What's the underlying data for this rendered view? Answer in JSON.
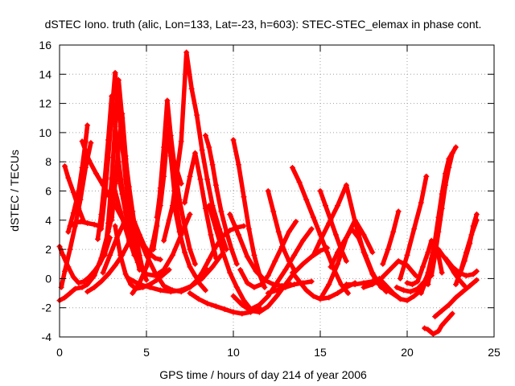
{
  "chart_data": {
    "type": "scatter",
    "title": "dSTEC Iono. truth (alic, Lon=133, Lat=-23, h=603): STEC-STEC_elemax in phase cont.",
    "xlabel": "GPS time / hours of day 214 of year 2006",
    "ylabel": "dSTEC  / TECUs",
    "xlim": [
      0,
      25
    ],
    "ylim": [
      -4,
      16
    ],
    "x_ticks": [
      0,
      5,
      10,
      15,
      20,
      25
    ],
    "y_ticks": [
      -4,
      -2,
      0,
      2,
      4,
      6,
      8,
      10,
      12,
      14,
      16
    ],
    "x_tick_labels": [
      "0",
      "5",
      "10",
      "15",
      "20",
      "25"
    ],
    "y_tick_labels": [
      "-4",
      "-2",
      "0",
      "2",
      "4",
      "6",
      "8",
      "10",
      "12",
      "14",
      "16"
    ],
    "grid": true,
    "legend": "none",
    "marker": "+",
    "color": "#ff0000",
    "series": [
      {
        "x": [
          0.0,
          0.2,
          0.5,
          0.8,
          1.1,
          1.4,
          1.7,
          2.0,
          2.3,
          2.6,
          2.9
        ],
        "values": [
          2.2,
          1.6,
          0.8,
          0.1,
          -0.3,
          -0.2,
          0.1,
          0.5,
          1.0,
          1.7,
          2.8
        ]
      },
      {
        "x": [
          0.0,
          0.3,
          0.6,
          0.9,
          1.3,
          1.6,
          2.0,
          2.4,
          2.8,
          3.0
        ],
        "values": [
          -1.5,
          -1.3,
          -1.0,
          -0.7,
          -0.6,
          -0.4,
          0.2,
          1.4,
          3.2,
          4.2
        ]
      },
      {
        "x": [
          0.1,
          0.3,
          0.6,
          0.9,
          1.2,
          1.5,
          1.8
        ],
        "values": [
          -0.6,
          0.5,
          2.0,
          3.6,
          5.4,
          7.6,
          9.3
        ]
      },
      {
        "x": [
          0.3,
          0.5,
          0.8,
          1.1,
          1.4
        ],
        "values": [
          7.7,
          6.9,
          5.9,
          4.8,
          3.9
        ]
      },
      {
        "x": [
          0.5,
          0.8,
          1.1,
          1.3,
          1.5,
          1.6
        ],
        "values": [
          3.2,
          4.5,
          6.0,
          7.6,
          9.4,
          10.5
        ]
      },
      {
        "x": [
          0.6,
          0.9,
          1.2,
          1.6,
          2.0,
          2.3
        ],
        "values": [
          3.6,
          3.8,
          3.9,
          3.8,
          3.7,
          3.6
        ]
      },
      {
        "x": [
          1.3,
          1.7,
          2.1,
          2.5,
          2.9,
          3.3,
          3.7,
          4.0,
          4.3
        ],
        "values": [
          9.4,
          8.1,
          7.2,
          6.4,
          5.6,
          4.8,
          3.9,
          2.8,
          1.6
        ]
      },
      {
        "x": [
          1.6,
          2.0,
          2.4,
          2.8,
          3.2,
          3.6,
          4.0,
          4.3
        ],
        "values": [
          -0.9,
          -0.6,
          -0.2,
          0.3,
          0.9,
          1.6,
          2.5,
          3.4
        ]
      },
      {
        "x": [
          2.2,
          2.4,
          2.6,
          2.8,
          3.0,
          3.2,
          3.4,
          3.6,
          3.8,
          4.0,
          4.2
        ],
        "values": [
          2.7,
          4.4,
          6.8,
          9.5,
          12.5,
          10.5,
          8.0,
          6.2,
          4.9,
          3.6,
          2.5
        ]
      },
      {
        "x": [
          2.4,
          2.6,
          2.8,
          3.0,
          3.2,
          3.4,
          3.6,
          3.8,
          4.0
        ],
        "values": [
          3.4,
          5.6,
          8.3,
          11.3,
          14.1,
          11.8,
          9.2,
          6.8,
          4.8
        ]
      },
      {
        "x": [
          2.6,
          2.8,
          3.0,
          3.2,
          3.4,
          3.6,
          3.8,
          4.0,
          4.2,
          4.4
        ],
        "values": [
          1.6,
          3.8,
          6.8,
          10.4,
          13.6,
          11.0,
          7.6,
          5.0,
          3.4,
          2.0
        ]
      },
      {
        "x": [
          3.0,
          3.2,
          3.4,
          3.6,
          3.8,
          4.0,
          4.2,
          4.4,
          4.6
        ],
        "values": [
          4.0,
          6.5,
          9.0,
          11.3,
          8.4,
          5.8,
          3.5,
          1.7,
          0.6
        ]
      },
      {
        "x": [
          3.4,
          3.6,
          3.8,
          4.0,
          4.2,
          4.5,
          4.8
        ],
        "values": [
          7.0,
          5.8,
          4.5,
          3.4,
          2.2,
          1.3,
          0.6
        ]
      },
      {
        "x": [
          3.8,
          4.0,
          4.2,
          4.4,
          4.6,
          4.8,
          5.0
        ],
        "values": [
          8.2,
          6.3,
          4.6,
          3.0,
          1.6,
          0.5,
          -0.1
        ]
      },
      {
        "x": [
          2.5,
          2.9,
          3.3,
          3.7,
          4.0,
          4.3,
          4.6,
          4.9,
          5.2,
          5.5,
          5.8
        ],
        "values": [
          0.4,
          1.6,
          2.8,
          3.8,
          4.5,
          3.9,
          3.0,
          2.2,
          1.7,
          1.4,
          1.3
        ]
      },
      {
        "x": [
          3.2,
          3.5,
          3.8,
          4.1,
          4.4,
          4.8,
          5.2,
          5.6,
          6.0,
          6.3
        ],
        "values": [
          3.6,
          1.6,
          0.3,
          -0.4,
          -0.7,
          -0.6,
          -0.4,
          -0.1,
          0.3,
          0.6
        ]
      },
      {
        "x": [
          3.0,
          3.5,
          4.0,
          4.5,
          5.0,
          5.5,
          6.0,
          6.5,
          7.0,
          7.5
        ],
        "values": [
          6.9,
          4.6,
          2.6,
          1.1,
          0.3,
          0.2,
          0.6,
          1.6,
          3.0,
          4.4
        ]
      },
      {
        "x": [
          4.0,
          4.5,
          5.0,
          5.5,
          6.0,
          6.5,
          7.0,
          7.5,
          8.0,
          8.5
        ],
        "values": [
          4.8,
          3.0,
          1.6,
          0.4,
          -0.5,
          -0.8,
          -0.9,
          -0.6,
          0.0,
          0.6
        ]
      },
      {
        "x": [
          4.0,
          4.6,
          5.2,
          5.8,
          6.4,
          7.0,
          7.6,
          8.2,
          8.8,
          9.3
        ],
        "values": [
          0.0,
          -0.4,
          -0.6,
          -0.8,
          -0.9,
          -0.8,
          -0.5,
          0.0,
          0.8,
          1.6
        ]
      },
      {
        "x": [
          4.2,
          4.6,
          5.0,
          5.4,
          5.8,
          6.0,
          6.2,
          6.6,
          7.0
        ],
        "values": [
          -1.0,
          -0.3,
          0.8,
          2.6,
          5.0,
          7.0,
          9.8,
          8.0,
          6.5
        ]
      },
      {
        "x": [
          5.4,
          5.6,
          5.8,
          6.0,
          6.2,
          6.4,
          6.6,
          6.9,
          7.2,
          7.5,
          7.8
        ],
        "values": [
          2.0,
          3.6,
          6.2,
          9.0,
          12.2,
          9.8,
          7.8,
          5.4,
          3.6,
          2.0,
          1.0
        ]
      },
      {
        "x": [
          5.6,
          5.8,
          6.0,
          6.2,
          6.4,
          6.6,
          6.8,
          7.0
        ],
        "values": [
          4.2,
          6.0,
          8.2,
          10.2,
          8.4,
          6.0,
          4.4,
          3.0
        ]
      },
      {
        "x": [
          6.0,
          6.5,
          7.0,
          7.3,
          7.6,
          7.9,
          8.2,
          8.5,
          8.8,
          9.2,
          9.6
        ],
        "values": [
          2.6,
          5.0,
          9.4,
          15.5,
          13.0,
          11.2,
          8.8,
          6.8,
          5.0,
          3.4,
          2.0
        ]
      },
      {
        "x": [
          6.6,
          6.9,
          7.2,
          7.5,
          7.8,
          8.1,
          8.4
        ],
        "values": [
          5.0,
          3.2,
          1.8,
          0.8,
          0.2,
          -0.4,
          -0.8
        ]
      },
      {
        "x": [
          7.2,
          7.5,
          7.8,
          8.1,
          8.4,
          8.7,
          9.0
        ],
        "values": [
          5.2,
          7.0,
          8.6,
          6.8,
          4.8,
          3.0,
          1.4
        ]
      },
      {
        "x": [
          7.8,
          8.2,
          8.6,
          9.0,
          9.4,
          9.8,
          10.2,
          10.6
        ],
        "values": [
          -0.3,
          0.4,
          1.3,
          2.2,
          2.9,
          3.3,
          3.5,
          3.6
        ]
      },
      {
        "x": [
          7.5,
          8.0,
          8.5,
          9.0,
          9.5,
          10.0,
          10.5,
          11.0,
          11.5
        ],
        "values": [
          -1.0,
          -1.4,
          -1.7,
          -1.9,
          -2.1,
          -2.3,
          -2.4,
          -2.3,
          -2.0
        ]
      },
      {
        "x": [
          8.4,
          8.6,
          8.8,
          9.0,
          9.3,
          9.6,
          9.9,
          10.2
        ],
        "values": [
          9.8,
          9.0,
          7.8,
          6.4,
          4.6,
          3.2,
          2.0,
          1.0
        ]
      },
      {
        "x": [
          8.6,
          9.0,
          9.4,
          9.8,
          10.2,
          10.6,
          11.0
        ],
        "values": [
          5.0,
          3.4,
          1.8,
          0.4,
          -0.6,
          -1.5,
          -2.1
        ]
      },
      {
        "x": [
          10.0,
          10.3,
          10.6,
          10.9,
          11.2,
          11.5,
          11.8
        ],
        "values": [
          9.5,
          7.8,
          5.6,
          3.4,
          1.6,
          0.3,
          -0.6
        ]
      },
      {
        "x": [
          10.0,
          10.5,
          11.0,
          11.5,
          12.0,
          12.5,
          13.0,
          13.5,
          14.0,
          14.5,
          15.0,
          15.4
        ],
        "values": [
          -1.2,
          -1.8,
          -2.2,
          -2.3,
          -1.9,
          -1.2,
          -0.4,
          0.4,
          1.0,
          1.5,
          1.9,
          2.1
        ]
      },
      {
        "x": [
          9.8,
          10.3,
          10.8,
          11.3,
          11.8,
          12.3,
          12.8,
          13.3
        ],
        "values": [
          4.4,
          3.0,
          1.5,
          0.5,
          -0.1,
          -0.4,
          -0.5,
          -0.4
        ]
      },
      {
        "x": [
          10.4,
          10.8,
          11.2,
          11.6,
          12.0,
          12.4,
          12.8,
          13.2,
          13.6
        ],
        "values": [
          0.6,
          -0.3,
          -0.6,
          -0.4,
          0.2,
          1.2,
          2.2,
          3.2,
          3.9
        ]
      },
      {
        "x": [
          11.0,
          11.5,
          12.0,
          12.5,
          13.0,
          13.5,
          14.0,
          14.5
        ],
        "values": [
          -2.1,
          -1.8,
          -1.2,
          -0.3,
          0.6,
          1.6,
          2.6,
          3.4
        ]
      },
      {
        "x": [
          12.0,
          12.3,
          12.6,
          12.9,
          13.2,
          13.5
        ],
        "values": [
          6.0,
          4.6,
          3.2,
          2.0,
          1.2,
          0.6
        ]
      },
      {
        "x": [
          12.0,
          12.5,
          13.0,
          13.5,
          14.0,
          14.5
        ],
        "values": [
          -1.0,
          -0.8,
          -0.6,
          -0.4,
          -0.3,
          -0.2
        ]
      },
      {
        "x": [
          13.4,
          13.8,
          14.2,
          14.6,
          15.0,
          15.4,
          15.8,
          16.2,
          16.6
        ],
        "values": [
          7.6,
          6.6,
          5.4,
          4.2,
          3.0,
          1.8,
          0.6,
          -0.4,
          -1.0
        ]
      },
      {
        "x": [
          13.4,
          13.8,
          14.2,
          14.6,
          15.0,
          15.5,
          16.0,
          16.5,
          17.0
        ],
        "values": [
          0.4,
          -0.2,
          -0.8,
          -1.2,
          -1.4,
          -1.3,
          -1.0,
          -0.6,
          -0.3
        ]
      },
      {
        "x": [
          15.0,
          15.3,
          15.6,
          15.9,
          16.2,
          16.5
        ],
        "values": [
          6.0,
          5.0,
          4.0,
          3.0,
          2.0,
          1.2
        ]
      },
      {
        "x": [
          15.0,
          15.5,
          16.0,
          16.5,
          17.0,
          17.5,
          18.0
        ],
        "values": [
          -1.4,
          -0.4,
          1.0,
          2.8,
          4.0,
          3.0,
          1.8
        ]
      },
      {
        "x": [
          14.6,
          15.0,
          15.5,
          16.0,
          16.5,
          17.0,
          17.5,
          18.0,
          18.5
        ],
        "values": [
          1.6,
          2.6,
          3.8,
          5.0,
          6.4,
          3.9,
          1.8,
          0.3,
          -0.6
        ]
      },
      {
        "x": [
          15.6,
          16.0,
          16.4,
          16.8,
          17.2,
          17.6,
          18.0,
          18.4,
          18.8
        ],
        "values": [
          0.8,
          1.8,
          2.6,
          3.4,
          2.8,
          1.6,
          0.4,
          -0.4,
          -0.9
        ]
      },
      {
        "x": [
          16.5,
          17.0,
          17.5,
          18.0,
          18.5,
          19.0,
          19.5
        ],
        "values": [
          -0.4,
          -0.4,
          -0.3,
          -0.2,
          -0.4,
          -0.9,
          -1.3
        ]
      },
      {
        "x": [
          17.5,
          18.0,
          18.5,
          19.0,
          19.5,
          20.0,
          20.5
        ],
        "values": [
          -0.6,
          -0.4,
          0.0,
          0.6,
          1.2,
          0.9,
          0.2
        ]
      },
      {
        "x": [
          18.4,
          18.8,
          19.2,
          19.6,
          20.0,
          20.4,
          20.8
        ],
        "values": [
          0.0,
          -0.5,
          -1.0,
          -1.4,
          -1.5,
          -1.2,
          -0.8
        ]
      },
      {
        "x": [
          18.6,
          18.9,
          19.2,
          19.5
        ],
        "values": [
          1.0,
          2.0,
          3.2,
          4.6
        ]
      },
      {
        "x": [
          19.6,
          20.0,
          20.4,
          20.8,
          21.1
        ],
        "values": [
          0.0,
          1.6,
          3.4,
          5.2,
          7.0
        ]
      },
      {
        "x": [
          19.4,
          19.8,
          20.2,
          20.6,
          21.0,
          21.3
        ],
        "values": [
          -0.6,
          -0.8,
          -0.9,
          -0.7,
          -0.2,
          0.6
        ]
      },
      {
        "x": [
          20.0,
          20.3,
          20.6,
          20.9,
          21.2,
          21.4
        ],
        "values": [
          -0.3,
          -0.4,
          -0.2,
          0.8,
          1.8,
          2.6
        ]
      },
      {
        "x": [
          20.8,
          21.0,
          21.2,
          21.4,
          21.6,
          21.8,
          22.0
        ],
        "values": [
          -1.0,
          -0.4,
          0.4,
          1.4,
          2.5,
          1.6,
          0.4
        ]
      },
      {
        "x": [
          21.0,
          21.2,
          21.5,
          21.8,
          22.0,
          22.3,
          22.6
        ],
        "values": [
          -3.4,
          -3.5,
          -3.8,
          -3.6,
          -3.2,
          -2.8,
          -2.4
        ]
      },
      {
        "x": [
          21.6,
          22.0,
          22.4,
          22.8,
          23.2,
          23.6,
          24.0
        ],
        "values": [
          -2.6,
          -2.2,
          -1.8,
          -1.3,
          -0.9,
          -0.5,
          -0.1
        ]
      },
      {
        "x": [
          21.2,
          21.4,
          21.6,
          21.8,
          22.0,
          22.2,
          22.4,
          22.6
        ],
        "values": [
          -0.4,
          1.0,
          2.6,
          4.2,
          5.8,
          7.2,
          8.2,
          8.6
        ]
      },
      {
        "x": [
          21.4,
          21.6,
          21.8,
          22.0,
          22.2,
          22.4,
          22.6,
          22.8
        ],
        "values": [
          0.2,
          1.6,
          3.2,
          4.8,
          6.4,
          7.6,
          8.6,
          9.0
        ]
      },
      {
        "x": [
          21.8,
          22.1,
          22.4,
          22.7,
          23.0,
          23.3
        ],
        "values": [
          2.0,
          1.5,
          1.0,
          0.4,
          -0.1,
          -0.5
        ]
      },
      {
        "x": [
          22.2,
          22.6,
          23.0,
          23.4,
          23.8,
          24.0
        ],
        "values": [
          1.4,
          0.8,
          0.4,
          0.2,
          0.3,
          0.5
        ]
      },
      {
        "x": [
          22.8,
          23.1,
          23.4,
          23.7,
          24.0
        ],
        "values": [
          -0.4,
          0.6,
          1.8,
          3.0,
          4.0
        ]
      },
      {
        "x": [
          23.0,
          23.3,
          23.6,
          23.8,
          24.0
        ],
        "values": [
          0.2,
          1.2,
          2.4,
          3.6,
          4.4
        ]
      }
    ]
  }
}
